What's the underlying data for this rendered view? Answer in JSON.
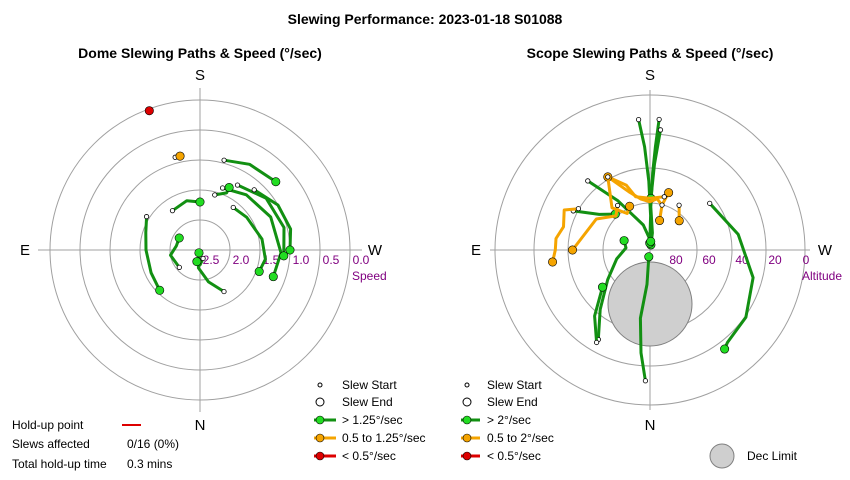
{
  "title": "Slewing Performance: 2023-01-18 S01088",
  "colors": {
    "fast": "#129012",
    "fast_fill": "#22dd22",
    "mid": "#f5a400",
    "mid_fill": "#f5a400",
    "slow": "#dd0000",
    "slow_fill": "#dd0000",
    "grid": "#a0a0a0",
    "purple": "#800080",
    "dec_limit": "#cfcfcf"
  },
  "chart_data": [
    {
      "type": "polar-path",
      "title": "Dome Slewing Paths & Speed (°/sec)",
      "directions": {
        "top": "S",
        "bottom": "N",
        "left": "E",
        "right": "W"
      },
      "radial_axis_title": "Speed",
      "radial_ticks": [
        "2.5",
        "2.0",
        "1.5",
        "1.0",
        "0.5",
        "0.0"
      ],
      "legend": [
        {
          "label": "Slew Start",
          "marker": "start"
        },
        {
          "label": "Slew End",
          "marker": "end"
        },
        {
          "label": "> 1.25°/sec",
          "marker": "fast"
        },
        {
          "label": "0.5 to 1.25°/sec",
          "marker": "mid"
        },
        {
          "label": "< 0.5°/sec",
          "marker": "slow"
        }
      ],
      "holdup": {
        "point_label": "Hold-up point",
        "slews_affected_label": "Slews affected",
        "slews_affected_value": "0/16 (0%)",
        "total_label": "Total hold-up time",
        "total_value": "0.3 mins"
      },
      "series": [
        {
          "speed": "fast",
          "points": [
            [
              322,
              1.6
            ],
            [
              305,
              1.55
            ],
            [
              280,
              1.45
            ],
            [
              262,
              1.4
            ],
            [
              250,
              1.45
            ]
          ]
        },
        {
          "speed": "fast",
          "points": [
            [
              210,
              1.7
            ],
            [
              195,
              1.95
            ],
            [
              175,
              2.2
            ],
            [
              160,
              2.45
            ]
          ]
        },
        {
          "speed": "fast",
          "points": [
            [
              340,
              1.4
            ],
            [
              320,
              1.3
            ],
            [
              295,
              1.2
            ],
            [
              268,
              1.15
            ],
            [
              250,
              1.2
            ]
          ]
        },
        {
          "speed": "fast",
          "points": [
            [
              330,
              1.25
            ],
            [
              308,
              1.1
            ],
            [
              285,
              1.05
            ],
            [
              266,
              1.1
            ]
          ]
        },
        {
          "speed": "fast",
          "points": [
            [
              318,
              1.15
            ],
            [
              300,
              1.0
            ],
            [
              283,
              0.95
            ],
            [
              270,
              1.0
            ]
          ]
        },
        {
          "speed": "fast",
          "points": [
            [
              345,
              0.95
            ],
            [
              330,
              0.85
            ],
            [
              312,
              0.8
            ]
          ]
        },
        {
          "speed": "fast",
          "points": [
            [
              58,
              1.45
            ],
            [
              72,
              1.55
            ],
            [
              90,
              1.6
            ],
            [
              115,
              1.6
            ],
            [
              135,
              1.55
            ]
          ]
        },
        {
          "speed": "fast",
          "points": [
            [
              35,
              1.7
            ],
            [
              15,
              1.65
            ],
            [
              0,
              1.7
            ]
          ]
        },
        {
          "speed": "fast",
          "points": [
            [
              130,
              2.05
            ],
            [
              100,
              2.0
            ],
            [
              80,
              2.1
            ],
            [
              60,
              2.1
            ]
          ]
        },
        {
          "speed": "fast",
          "points": [
            [
              345,
              1.55
            ],
            [
              335,
              1.45
            ],
            [
              335,
              1.35
            ]
          ]
        },
        {
          "speed": "fast",
          "points": [
            [
              200,
              2.35
            ],
            [
              180,
              2.25
            ],
            [
              165,
              2.3
            ]
          ]
        },
        {
          "speed": "mid",
          "points": [
            [
              15,
              0.9
            ],
            [
              12,
              0.9
            ]
          ]
        },
        {
          "speed": "slow",
          "points": [
            [
              20,
              0.05
            ],
            [
              20,
              0.03
            ]
          ]
        }
      ]
    },
    {
      "type": "polar-path",
      "title": "Scope Slewing Paths & Speed (°/sec)",
      "directions": {
        "top": "S",
        "bottom": "N",
        "left": "E",
        "right": "W"
      },
      "radial_axis_title": "Altitude",
      "radial_ticks": [
        "80",
        "60",
        "40",
        "20",
        "0"
      ],
      "legend": [
        {
          "label": "Slew Start",
          "marker": "start"
        },
        {
          "label": "Slew End",
          "marker": "end"
        },
        {
          "label": "> 2°/sec",
          "marker": "fast"
        },
        {
          "label": "0.5 to 2°/sec",
          "marker": "mid"
        },
        {
          "label": "< 0.5°/sec",
          "marker": "slow"
        }
      ],
      "dec_limit_label": "Dec Limit",
      "series": [
        {
          "speed": "fast",
          "points": [
            [
              -52,
              46
            ],
            [
              -80,
              38
            ],
            [
              -105,
              28
            ],
            [
              -125,
              22
            ],
            [
              -140,
              20
            ],
            [
              -143,
              18
            ]
          ]
        },
        {
          "speed": "fast",
          "points": [
            [
              178,
              14
            ],
            [
              175,
              30
            ],
            [
              172,
              50
            ],
            [
              175,
              70
            ],
            [
              170,
              86
            ]
          ]
        },
        {
          "speed": "fast",
          "points": [
            [
              -4,
              14
            ],
            [
              -3,
              30
            ],
            [
              -2,
              45
            ],
            [
              -1,
              65
            ],
            [
              -8,
              80
            ],
            [
              -10,
              87
            ]
          ]
        },
        {
          "speed": "fast",
          "points": [
            [
              5,
              14
            ],
            [
              3,
              30
            ],
            [
              1,
              50
            ],
            [
              -1,
              70
            ],
            [
              2,
              86
            ]
          ]
        },
        {
          "speed": "fast",
          "points": [
            [
              -5,
              20
            ],
            [
              -3,
              40
            ],
            [
              -1,
              60
            ]
          ]
        },
        {
          "speed": "fast",
          "points": [
            [
              150,
              30
            ],
            [
              140,
              45
            ],
            [
              125,
              60
            ],
            [
              105,
              70
            ],
            [
              85,
              76
            ],
            [
              70,
              74
            ]
          ]
        },
        {
          "speed": "fast",
          "points": [
            [
              150,
              28
            ],
            [
              140,
              40
            ],
            [
              128,
              55
            ]
          ]
        },
        {
          "speed": "fast",
          "points": [
            [
              42,
              36
            ],
            [
              33,
              56
            ],
            [
              15,
              75
            ],
            [
              -5,
              85
            ]
          ]
        },
        {
          "speed": "fast",
          "points": [
            [
              63,
              40
            ],
            [
              55,
              54
            ],
            [
              44,
              61
            ]
          ]
        },
        {
          "speed": "mid",
          "points": [
            [
              30,
              41
            ],
            [
              20,
              54
            ],
            [
              10,
              60
            ],
            [
              0,
              62
            ],
            [
              -8,
              60
            ],
            [
              -15,
              63
            ],
            [
              -18,
              55
            ]
          ]
        },
        {
          "speed": "mid",
          "points": [
            [
              -15,
              58
            ],
            [
              0,
              60
            ],
            [
              15,
              58
            ],
            [
              20,
              50
            ],
            [
              30,
              41
            ]
          ]
        },
        {
          "speed": "mid",
          "points": [
            [
              -15,
              63
            ],
            [
              -18,
              72
            ]
          ]
        },
        {
          "speed": "mid",
          "points": [
            [
              30,
              41
            ],
            [
              42,
              57
            ],
            [
              32,
              65
            ],
            [
              25,
              62
            ]
          ]
        },
        {
          "speed": "mid",
          "points": [
            [
              60,
              42
            ],
            [
              65,
              35
            ],
            [
              75,
              38
            ],
            [
              83,
              35
            ],
            [
              90,
              35
            ],
            [
              97,
              33
            ]
          ]
        },
        {
          "speed": "mid",
          "points": [
            [
              36,
              58
            ],
            [
              45,
              62
            ],
            [
              60,
              54
            ],
            [
              90,
              45
            ]
          ]
        },
        {
          "speed": "mid",
          "points": [
            [
              -33,
              59
            ],
            [
              -45,
              66
            ]
          ]
        }
      ]
    }
  ]
}
